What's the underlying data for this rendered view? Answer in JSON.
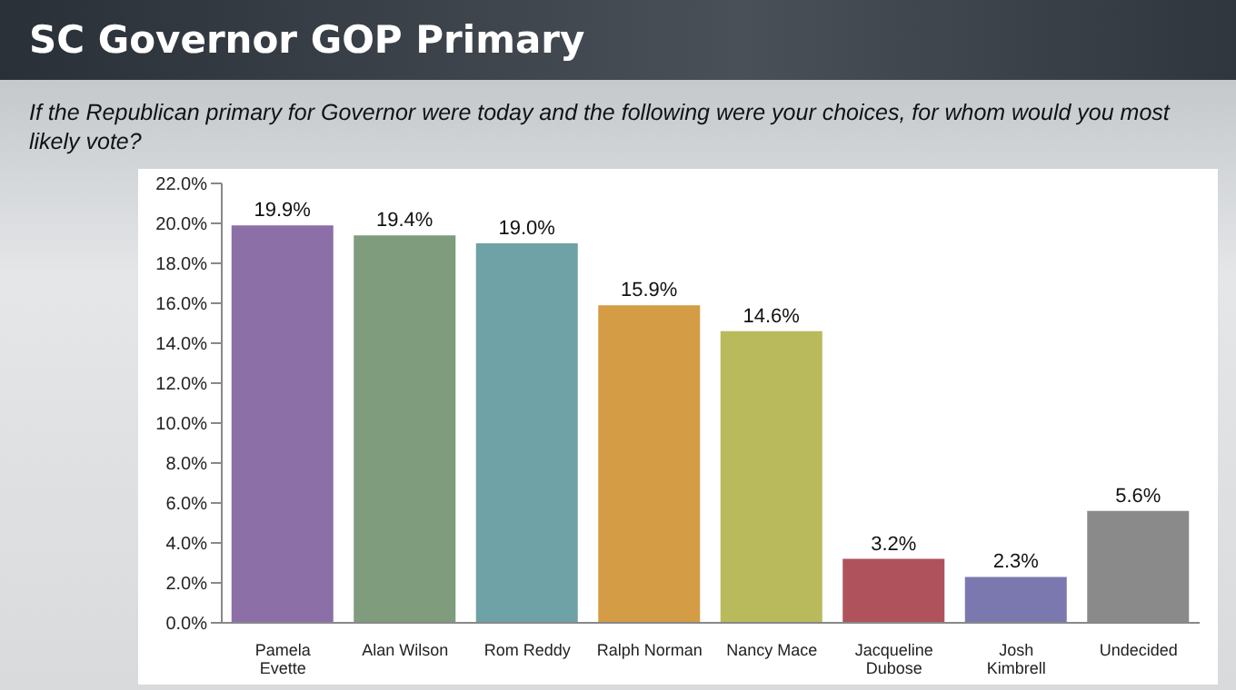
{
  "chart_data": {
    "type": "bar",
    "title": "SC Governor GOP Primary",
    "subtitle": "If the Republican primary for Governor were today and the following were your choices, for whom would you most likely vote?",
    "categories": [
      "Pamela Evette",
      "Alan Wilson",
      "Rom Reddy",
      "Ralph Norman",
      "Nancy Mace",
      "Jacqueline Dubose",
      "Josh Kimbrell",
      "Undecided"
    ],
    "values": [
      19.9,
      19.4,
      19.0,
      15.9,
      14.6,
      3.2,
      2.3,
      5.6
    ],
    "colors": [
      "#8b6fa6",
      "#7f9c7c",
      "#6fa2a6",
      "#d39c45",
      "#b8ba5c",
      "#b0525c",
      "#7b78b0",
      "#8a8a8a"
    ],
    "value_labels": [
      "19.9%",
      "19.4%",
      "19.0%",
      "15.9%",
      "14.6%",
      "3.2%",
      "2.3%",
      "5.6%"
    ],
    "ylim": [
      0,
      22
    ],
    "yticks": [
      {
        "value": 0,
        "label": "0.0%"
      },
      {
        "value": 2,
        "label": "2.0%"
      },
      {
        "value": 4,
        "label": "4.0%"
      },
      {
        "value": 6,
        "label": "6.0%"
      },
      {
        "value": 8,
        "label": "8.0%"
      },
      {
        "value": 10,
        "label": "10.0%"
      },
      {
        "value": 12,
        "label": "12.0%"
      },
      {
        "value": 14,
        "label": "14.0%"
      },
      {
        "value": 16,
        "label": "16.0%"
      },
      {
        "value": 18,
        "label": "18.0%"
      },
      {
        "value": 20,
        "label": "20.0%"
      },
      {
        "value": 22,
        "label": "22.0%"
      }
    ],
    "grid": false,
    "legend": false
  }
}
